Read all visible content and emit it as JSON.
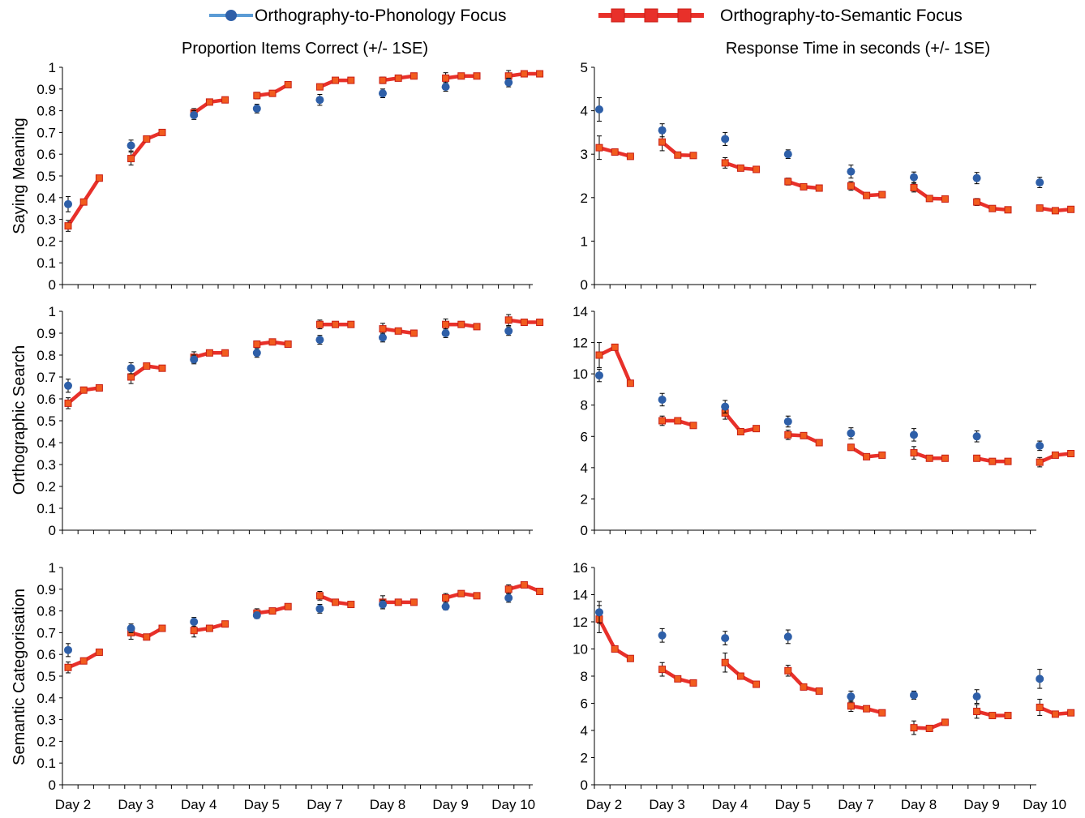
{
  "legend": {
    "phonology_label": "Orthography-to-Phonology Focus",
    "semantic_label": "Orthography-to-Semantic Focus"
  },
  "column_titles": {
    "left": "Proportion Items Correct (+/- 1SE)",
    "right": "Response Time in seconds (+/- 1SE)"
  },
  "row_labels": [
    "Saying Meaning",
    "Orthographic Search",
    "Semantic Categorisation"
  ],
  "colors": {
    "phonology": "#2e5fa8",
    "phonology_legend_line": "#5b9bd5",
    "semantic": "#e8302a",
    "semantic_marker": "#f25c1e",
    "axis": "#000000"
  },
  "chart_data": [
    {
      "type": "line",
      "title": "Proportion Items Correct (+/- 1SE)",
      "ylabel": "Saying Meaning",
      "ylim": [
        0,
        1
      ],
      "yticks": [
        0,
        0.1,
        0.2,
        0.3,
        0.4,
        0.5,
        0.6,
        0.7,
        0.8,
        0.9,
        1
      ],
      "categories": [
        "Day 2",
        "Day 3",
        "Day 4",
        "Day 5",
        "Day 7",
        "Day 8",
        "Day 9",
        "Day 10"
      ],
      "series": [
        {
          "name": "Orthography-to-Phonology Focus",
          "values": [
            0.37,
            0.64,
            0.78,
            0.81,
            0.85,
            0.88,
            0.91,
            0.93
          ],
          "err": [
            0.035,
            0.025,
            0.02,
            0.02,
            0.025,
            0.02,
            0.02,
            0.02
          ]
        },
        {
          "name": "Orthography-to-Semantic Focus",
          "values": [
            [
              0.27,
              0.38,
              0.49
            ],
            [
              0.58,
              0.67,
              0.7
            ],
            [
              0.79,
              0.84,
              0.85
            ],
            [
              0.87,
              0.88,
              0.92
            ],
            [
              0.91,
              0.94,
              0.94
            ],
            [
              0.94,
              0.95,
              0.96
            ],
            [
              0.95,
              0.96,
              0.96
            ],
            [
              0.96,
              0.97,
              0.97
            ]
          ],
          "err": [
            0.025,
            0.03,
            0.02,
            0.015,
            0.01,
            0.015,
            0.025,
            0.025
          ]
        }
      ]
    },
    {
      "type": "line",
      "title": "Response Time in seconds (+/- 1SE)",
      "ylabel": "",
      "ylim": [
        0,
        5
      ],
      "yticks": [
        0,
        1,
        2,
        3,
        4,
        5
      ],
      "categories": [
        "Day 2",
        "Day 3",
        "Day 4",
        "Day 5",
        "Day 7",
        "Day 8",
        "Day 9",
        "Day 10"
      ],
      "series": [
        {
          "name": "Orthography-to-Phonology Focus",
          "values": [
            4.03,
            3.55,
            3.35,
            3.0,
            2.6,
            2.47,
            2.45,
            2.35
          ],
          "err": [
            0.27,
            0.15,
            0.15,
            0.1,
            0.15,
            0.12,
            0.13,
            0.12
          ]
        },
        {
          "name": "Orthography-to-Semantic Focus",
          "values": [
            [
              3.15,
              3.05,
              2.95
            ],
            [
              3.28,
              2.98,
              2.97
            ],
            [
              2.8,
              2.68,
              2.65
            ],
            [
              2.37,
              2.25,
              2.22
            ],
            [
              2.27,
              2.05,
              2.07
            ],
            [
              2.23,
              1.98,
              1.97
            ],
            [
              1.9,
              1.75,
              1.72
            ],
            [
              1.76,
              1.7,
              1.73
            ]
          ],
          "err": [
            0.27,
            0.2,
            0.12,
            0.08,
            0.1,
            0.1,
            0.08,
            0.07
          ]
        }
      ]
    },
    {
      "type": "line",
      "title": "",
      "ylabel": "Orthographic Search",
      "ylim": [
        0,
        1
      ],
      "yticks": [
        0,
        0.1,
        0.2,
        0.3,
        0.4,
        0.5,
        0.6,
        0.7,
        0.8,
        0.9,
        1
      ],
      "categories": [
        "Day 2",
        "Day 3",
        "Day 4",
        "Day 5",
        "Day 7",
        "Day 8",
        "Day 9",
        "Day 10"
      ],
      "series": [
        {
          "name": "Orthography-to-Phonology Focus",
          "values": [
            0.66,
            0.74,
            0.78,
            0.81,
            0.87,
            0.88,
            0.9,
            0.91
          ],
          "err": [
            0.03,
            0.025,
            0.02,
            0.02,
            0.02,
            0.02,
            0.02,
            0.02
          ]
        },
        {
          "name": "Orthography-to-Semantic Focus",
          "values": [
            [
              0.58,
              0.64,
              0.65
            ],
            [
              0.7,
              0.75,
              0.74
            ],
            [
              0.79,
              0.81,
              0.81
            ],
            [
              0.85,
              0.86,
              0.85
            ],
            [
              0.94,
              0.94,
              0.94
            ],
            [
              0.92,
              0.91,
              0.9
            ],
            [
              0.94,
              0.94,
              0.93
            ],
            [
              0.96,
              0.95,
              0.95
            ]
          ],
          "err": [
            0.025,
            0.03,
            0.025,
            0.015,
            0.02,
            0.025,
            0.025,
            0.025
          ]
        }
      ]
    },
    {
      "type": "line",
      "title": "",
      "ylabel": "",
      "ylim": [
        0,
        14
      ],
      "yticks": [
        0,
        2,
        4,
        6,
        8,
        10,
        12,
        14
      ],
      "categories": [
        "Day 2",
        "Day 3",
        "Day 4",
        "Day 5",
        "Day 7",
        "Day 8",
        "Day 9",
        "Day 10"
      ],
      "series": [
        {
          "name": "Orthography-to-Phonology Focus",
          "values": [
            9.9,
            8.35,
            7.9,
            6.95,
            6.2,
            6.1,
            6.0,
            5.4
          ],
          "err": [
            0.4,
            0.4,
            0.4,
            0.35,
            0.35,
            0.4,
            0.35,
            0.3
          ]
        },
        {
          "name": "Orthography-to-Semantic Focus",
          "values": [
            [
              11.2,
              11.7,
              9.4
            ],
            [
              7.0,
              7.0,
              6.7
            ],
            [
              7.5,
              6.3,
              6.5
            ],
            [
              6.1,
              6.05,
              5.6
            ],
            [
              5.3,
              4.7,
              4.8
            ],
            [
              4.95,
              4.6,
              4.6
            ],
            [
              4.6,
              4.4,
              4.4
            ],
            [
              4.35,
              4.8,
              4.9
            ]
          ],
          "err": [
            0.8,
            0.3,
            0.4,
            0.3,
            0.2,
            0.4,
            0.15,
            0.3
          ]
        }
      ]
    },
    {
      "type": "line",
      "title": "",
      "ylabel": "Semantic Categorisation",
      "ylim": [
        0,
        1
      ],
      "yticks": [
        0,
        0.1,
        0.2,
        0.3,
        0.4,
        0.5,
        0.6,
        0.7,
        0.8,
        0.9,
        1
      ],
      "categories": [
        "Day 2",
        "Day 3",
        "Day 4",
        "Day 5",
        "Day 7",
        "Day 8",
        "Day 9",
        "Day 10"
      ],
      "series": [
        {
          "name": "Orthography-to-Phonology Focus",
          "values": [
            0.62,
            0.72,
            0.75,
            0.78,
            0.81,
            0.83,
            0.82,
            0.86
          ],
          "err": [
            0.03,
            0.02,
            0.02,
            0.015,
            0.02,
            0.02,
            0.015,
            0.02
          ]
        },
        {
          "name": "Orthography-to-Semantic Focus",
          "values": [
            [
              0.54,
              0.57,
              0.61
            ],
            [
              0.7,
              0.68,
              0.72
            ],
            [
              0.71,
              0.72,
              0.74
            ],
            [
              0.79,
              0.8,
              0.82
            ],
            [
              0.87,
              0.84,
              0.83
            ],
            [
              0.84,
              0.84,
              0.84
            ],
            [
              0.86,
              0.88,
              0.87
            ],
            [
              0.9,
              0.92,
              0.89
            ]
          ],
          "err": [
            0.025,
            0.03,
            0.03,
            0.02,
            0.02,
            0.03,
            0.02,
            0.02
          ]
        }
      ]
    },
    {
      "type": "line",
      "title": "",
      "ylabel": "",
      "ylim": [
        0,
        16
      ],
      "yticks": [
        0,
        2,
        4,
        6,
        8,
        10,
        12,
        14,
        16
      ],
      "categories": [
        "Day 2",
        "Day 3",
        "Day 4",
        "Day 5",
        "Day 7",
        "Day 8",
        "Day 9",
        "Day 10"
      ],
      "series": [
        {
          "name": "Orthography-to-Phonology Focus",
          "values": [
            12.7,
            11.0,
            10.8,
            10.9,
            6.5,
            6.6,
            6.5,
            7.8
          ],
          "err": [
            0.8,
            0.5,
            0.5,
            0.5,
            0.4,
            0.3,
            0.5,
            0.7
          ]
        },
        {
          "name": "Orthography-to-Semantic Focus",
          "values": [
            [
              12.2,
              10.0,
              9.3
            ],
            [
              8.5,
              7.8,
              7.5
            ],
            [
              9.0,
              8.0,
              7.4
            ],
            [
              8.4,
              7.2,
              6.9
            ],
            [
              5.8,
              5.6,
              5.3
            ],
            [
              4.2,
              4.15,
              4.6
            ],
            [
              5.4,
              5.1,
              5.1
            ],
            [
              5.7,
              5.2,
              5.3
            ]
          ],
          "err": [
            1.0,
            0.5,
            0.7,
            0.4,
            0.4,
            0.5,
            0.5,
            0.6
          ]
        }
      ]
    }
  ]
}
